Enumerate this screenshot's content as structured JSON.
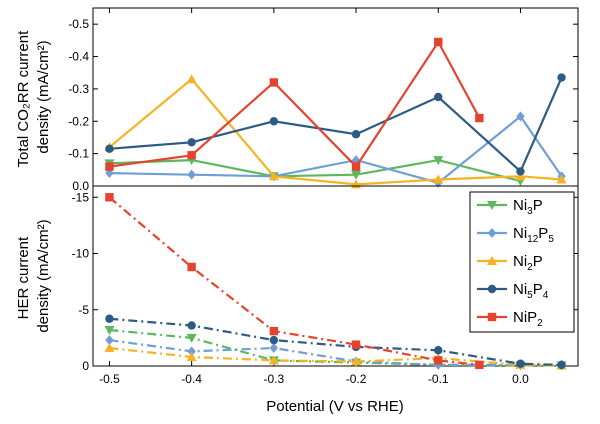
{
  "chart_data": [
    {
      "type": "line",
      "panel": "top",
      "ylabel_line1": "Total CO₂RR current",
      "ylabel_line2": "density (mA/cm²)",
      "ylim": [
        0.0,
        -0.55
      ],
      "yticks": [
        0.0,
        -0.1,
        -0.2,
        -0.3,
        -0.4,
        -0.5
      ],
      "ytick_labels": [
        "0.0",
        "-0.1",
        "-0.2",
        "-0.3",
        "-0.4",
        "-0.5"
      ],
      "series": [
        {
          "name": "Ni3P",
          "color": "#5cb85c",
          "marker": "triangle-down",
          "x": [
            -0.5,
            -0.4,
            -0.3,
            -0.2,
            -0.1,
            0.0
          ],
          "y": [
            -0.07,
            -0.08,
            -0.03,
            -0.035,
            -0.08,
            -0.015
          ]
        },
        {
          "name": "Ni12P5",
          "color": "#6f9fd6",
          "marker": "diamond",
          "x": [
            -0.5,
            -0.4,
            -0.3,
            -0.2,
            -0.1,
            0.0,
            0.05
          ],
          "y": [
            -0.04,
            -0.035,
            -0.03,
            -0.08,
            -0.01,
            -0.215,
            -0.03
          ]
        },
        {
          "name": "Ni2P",
          "color": "#f5b323",
          "marker": "triangle-up",
          "x": [
            -0.5,
            -0.4,
            -0.3,
            -0.2,
            -0.1,
            0.0,
            0.05
          ],
          "y": [
            -0.12,
            -0.33,
            -0.03,
            -0.005,
            -0.02,
            -0.03,
            -0.02
          ]
        },
        {
          "name": "Ni5P4",
          "color": "#2e5b84",
          "marker": "circle",
          "x": [
            -0.5,
            -0.4,
            -0.3,
            -0.2,
            -0.1,
            0.0,
            0.05
          ],
          "y": [
            -0.115,
            -0.135,
            -0.2,
            -0.16,
            -0.275,
            -0.045,
            -0.335
          ]
        },
        {
          "name": "NiP2",
          "color": "#e5432e",
          "marker": "square",
          "x": [
            -0.5,
            -0.4,
            -0.3,
            -0.2,
            -0.1,
            -0.05
          ],
          "y": [
            -0.06,
            -0.095,
            -0.32,
            -0.06,
            -0.445,
            -0.21
          ]
        }
      ]
    },
    {
      "type": "line",
      "panel": "bottom",
      "ylabel_line1": "HER current",
      "ylabel_line2": "density (mA/cm²)",
      "xlabel": "Potential (V vs RHE)",
      "xlim": [
        -0.52,
        0.07
      ],
      "xticks": [
        -0.5,
        -0.4,
        -0.3,
        -0.2,
        -0.1,
        0.0
      ],
      "xtick_labels": [
        "-0.5",
        "-0.4",
        "-0.3",
        "-0.2",
        "-0.1",
        "0.0"
      ],
      "ylim": [
        0.0,
        -16.0
      ],
      "yticks": [
        0,
        -5,
        -10,
        -15
      ],
      "ytick_labels": [
        "0",
        "-5",
        "-10",
        "-15"
      ],
      "legend_position": "right",
      "line_style": "dash-dot",
      "series": [
        {
          "name": "Ni3P",
          "color": "#5cb85c",
          "marker": "triangle-down",
          "x": [
            -0.5,
            -0.4,
            -0.3,
            -0.2,
            -0.1,
            0.0,
            0.05
          ],
          "y": [
            -3.2,
            -2.5,
            -0.5,
            -0.3,
            -0.1,
            -0.05,
            -0.05
          ]
        },
        {
          "name": "Ni12P5",
          "color": "#6f9fd6",
          "marker": "diamond",
          "x": [
            -0.5,
            -0.4,
            -0.3,
            -0.2,
            -0.1,
            0.0,
            0.05
          ],
          "y": [
            -2.3,
            -1.3,
            -1.6,
            -0.4,
            -0.1,
            -0.1,
            -0.1
          ]
        },
        {
          "name": "Ni2P",
          "color": "#f5b323",
          "marker": "triangle-up",
          "x": [
            -0.5,
            -0.4,
            -0.3,
            -0.2,
            -0.1,
            0.0,
            0.05
          ],
          "y": [
            -1.6,
            -0.8,
            -0.5,
            -0.4,
            -0.7,
            -0.1,
            -0.05
          ]
        },
        {
          "name": "Ni5P4",
          "color": "#2e5b84",
          "marker": "circle",
          "x": [
            -0.5,
            -0.4,
            -0.3,
            -0.2,
            -0.1,
            0.0,
            0.05
          ],
          "y": [
            -4.2,
            -3.6,
            -2.3,
            -1.7,
            -1.4,
            -0.2,
            -0.1
          ]
        },
        {
          "name": "NiP2",
          "color": "#e5432e",
          "marker": "square",
          "x": [
            -0.5,
            -0.4,
            -0.3,
            -0.2,
            -0.1,
            -0.05
          ],
          "y": [
            -15.0,
            -8.8,
            -3.1,
            -1.9,
            -0.5,
            -0.1
          ]
        }
      ]
    }
  ],
  "legend": [
    {
      "base": "Ni",
      "sub1": "3",
      "mid": "P",
      "sub2": "",
      "color": "#5cb85c",
      "marker": "triangle-down"
    },
    {
      "base": "Ni",
      "sub1": "12",
      "mid": "P",
      "sub2": "5",
      "color": "#6f9fd6",
      "marker": "diamond"
    },
    {
      "base": "Ni",
      "sub1": "2",
      "mid": "P",
      "sub2": "",
      "color": "#f5b323",
      "marker": "triangle-up"
    },
    {
      "base": "Ni",
      "sub1": "5",
      "mid": "P",
      "sub2": "4",
      "color": "#2e5b84",
      "marker": "circle"
    },
    {
      "base": "NiP",
      "sub1": "2",
      "mid": "",
      "sub2": "",
      "color": "#e5432e",
      "marker": "square"
    }
  ]
}
